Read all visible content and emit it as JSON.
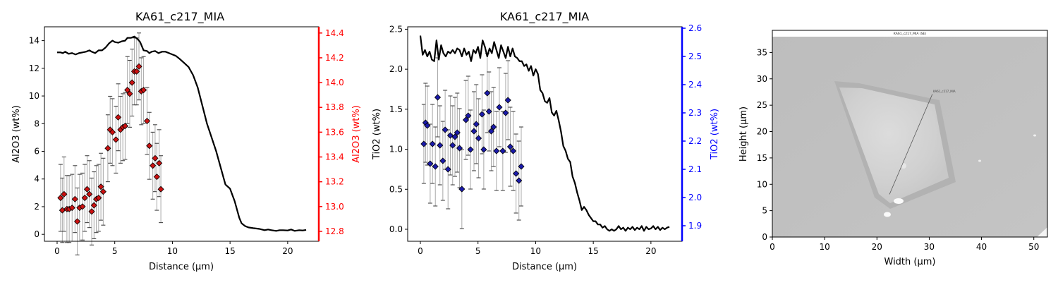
{
  "colors": {
    "left_axis": "#000000",
    "al2o3": "#ff0000",
    "tio2": "#0000ff",
    "line": "#000000",
    "marker_al2o3": "#cc1111",
    "marker_tio2": "#1a1aaa",
    "errorbar": "#a8a8a8"
  },
  "chart_data": [
    {
      "type": "line",
      "title": "KA61_c217_MIA",
      "xlabel": "Distance (µm)",
      "ylabel": "Al2O3 (wt%)",
      "y2label": "Al2O3 (wt%)",
      "xlim": [
        -1.1,
        22.7
      ],
      "ylim": [
        -0.5,
        15.0
      ],
      "y2lim": [
        12.72,
        14.45
      ],
      "xticks": [
        0,
        5,
        10,
        15,
        20
      ],
      "yticks": [
        0,
        2,
        4,
        6,
        8,
        10,
        12,
        14
      ],
      "y2ticks": [
        12.8,
        13.0,
        13.2,
        13.4,
        13.6,
        13.8,
        14.0,
        14.2,
        14.4
      ],
      "series": [
        {
          "type": "line",
          "axis": "left",
          "x": [
            0,
            0.3,
            0.5,
            0.7,
            1.0,
            1.3,
            1.6,
            1.9,
            2.2,
            2.5,
            2.8,
            3.0,
            3.3,
            3.6,
            3.9,
            4.2,
            4.5,
            4.8,
            5.0,
            5.3,
            5.6,
            5.9,
            6.1,
            6.4,
            6.7,
            7.0,
            7.2,
            7.5,
            7.8,
            8.0,
            8.2,
            8.5,
            8.8,
            9.1,
            9.4,
            9.7,
            10.0,
            10.3,
            10.6,
            11.0,
            11.4,
            11.8,
            12.2,
            12.6,
            13.0,
            13.4,
            13.8,
            14.2,
            14.6,
            15.0,
            15.4,
            15.8,
            16.0,
            16.3,
            16.6,
            17.0,
            17.5,
            18.0,
            18.3,
            18.6,
            19.0,
            19.3,
            19.6,
            20.0,
            20.3,
            20.6,
            21.0,
            21.3,
            21.6
          ],
          "y": [
            13.15,
            13.15,
            13.1,
            13.2,
            13.05,
            13.1,
            13.0,
            13.1,
            13.15,
            13.2,
            13.3,
            13.2,
            13.1,
            13.3,
            13.3,
            13.5,
            13.8,
            14.0,
            13.9,
            13.85,
            13.95,
            14.0,
            14.2,
            14.2,
            14.3,
            14.1,
            13.9,
            13.3,
            13.25,
            13.1,
            13.2,
            13.25,
            13.1,
            13.2,
            13.2,
            13.1,
            13.0,
            12.9,
            12.7,
            12.4,
            12.1,
            11.5,
            10.6,
            9.3,
            8.0,
            7.0,
            6.0,
            4.8,
            3.6,
            3.3,
            2.4,
            1.2,
            0.8,
            0.6,
            0.5,
            0.45,
            0.4,
            0.3,
            0.35,
            0.3,
            0.25,
            0.3,
            0.3,
            0.28,
            0.35,
            0.25,
            0.3,
            0.28,
            0.32
          ]
        },
        {
          "type": "errorbar",
          "axis": "right",
          "marker": "diamond",
          "points": [
            {
              "x": 0.3,
              "y": 13.07,
              "err": 0.27
            },
            {
              "x": 0.45,
              "y": 12.97,
              "err": 0.26
            },
            {
              "x": 0.6,
              "y": 13.1,
              "err": 0.3
            },
            {
              "x": 0.85,
              "y": 12.98,
              "err": 0.27
            },
            {
              "x": 1.05,
              "y": 12.98,
              "err": 0.27
            },
            {
              "x": 1.3,
              "y": 12.99,
              "err": 0.27
            },
            {
              "x": 1.55,
              "y": 13.06,
              "err": 0.27
            },
            {
              "x": 1.75,
              "y": 12.88,
              "err": 0.27
            },
            {
              "x": 1.95,
              "y": 12.99,
              "err": 0.27
            },
            {
              "x": 2.2,
              "y": 13.0,
              "err": 0.27
            },
            {
              "x": 2.4,
              "y": 13.07,
              "err": 0.27
            },
            {
              "x": 2.6,
              "y": 13.14,
              "err": 0.27
            },
            {
              "x": 2.8,
              "y": 13.1,
              "err": 0.27
            },
            {
              "x": 3.0,
              "y": 12.96,
              "err": 0.27
            },
            {
              "x": 3.2,
              "y": 13.01,
              "err": 0.27
            },
            {
              "x": 3.4,
              "y": 13.06,
              "err": 0.27
            },
            {
              "x": 3.6,
              "y": 13.07,
              "err": 0.27
            },
            {
              "x": 3.8,
              "y": 13.16,
              "err": 0.27
            },
            {
              "x": 4.0,
              "y": 13.12,
              "err": 0.27
            },
            {
              "x": 4.4,
              "y": 13.47,
              "err": 0.27
            },
            {
              "x": 4.6,
              "y": 13.62,
              "err": 0.27
            },
            {
              "x": 4.8,
              "y": 13.6,
              "err": 0.27
            },
            {
              "x": 5.1,
              "y": 13.54,
              "err": 0.27
            },
            {
              "x": 5.3,
              "y": 13.72,
              "err": 0.27
            },
            {
              "x": 5.5,
              "y": 13.62,
              "err": 0.27
            },
            {
              "x": 5.7,
              "y": 13.64,
              "err": 0.27
            },
            {
              "x": 5.9,
              "y": 13.65,
              "err": 0.27
            },
            {
              "x": 6.1,
              "y": 13.94,
              "err": 0.27
            },
            {
              "x": 6.3,
              "y": 13.91,
              "err": 0.27
            },
            {
              "x": 6.5,
              "y": 14.0,
              "err": 0.27
            },
            {
              "x": 6.7,
              "y": 14.09,
              "err": 0.27
            },
            {
              "x": 6.9,
              "y": 14.09,
              "err": 0.27
            },
            {
              "x": 7.1,
              "y": 14.13,
              "err": 0.27
            },
            {
              "x": 7.3,
              "y": 13.93,
              "err": 0.27
            },
            {
              "x": 7.5,
              "y": 13.94,
              "err": 0.27
            },
            {
              "x": 7.8,
              "y": 13.69,
              "err": 0.27
            },
            {
              "x": 8.0,
              "y": 13.49,
              "err": 0.27
            },
            {
              "x": 8.3,
              "y": 13.33,
              "err": 0.27
            },
            {
              "x": 8.5,
              "y": 13.39,
              "err": 0.27
            },
            {
              "x": 8.65,
              "y": 13.24,
              "err": 0.27
            },
            {
              "x": 8.85,
              "y": 13.35,
              "err": 0.27
            },
            {
              "x": 9.0,
              "y": 13.14,
              "err": 0.27
            }
          ]
        }
      ]
    },
    {
      "type": "line",
      "title": "KA61_c217_MIA",
      "xlabel": "Distance (µm)",
      "ylabel": "TiO2 (wt%)",
      "y2label": "TiO2 (wt%)",
      "xlim": [
        -1.1,
        22.7
      ],
      "ylim": [
        -0.15,
        2.53
      ],
      "y2lim": [
        1.845,
        2.605
      ],
      "xticks": [
        0,
        5,
        10,
        15,
        20
      ],
      "yticks": [
        0.0,
        0.5,
        1.0,
        1.5,
        2.0,
        2.5
      ],
      "y2ticks": [
        1.9,
        2.0,
        2.1,
        2.2,
        2.3,
        2.4,
        2.5,
        2.6
      ],
      "series": [
        {
          "type": "line",
          "axis": "left",
          "x": [
            0,
            0.2,
            0.4,
            0.6,
            0.8,
            1.0,
            1.2,
            1.4,
            1.6,
            1.8,
            2.0,
            2.2,
            2.4,
            2.6,
            2.8,
            3.0,
            3.2,
            3.4,
            3.6,
            3.8,
            4.0,
            4.2,
            4.4,
            4.6,
            4.8,
            5.0,
            5.2,
            5.4,
            5.6,
            5.8,
            6.0,
            6.2,
            6.4,
            6.6,
            6.8,
            7.0,
            7.2,
            7.4,
            7.6,
            7.8,
            8.0,
            8.2,
            8.4,
            8.6,
            8.8,
            9.0,
            9.2,
            9.4,
            9.6,
            9.8,
            10.0,
            10.2,
            10.4,
            10.6,
            10.8,
            11.0,
            11.2,
            11.4,
            11.6,
            11.8,
            12.0,
            12.2,
            12.4,
            12.6,
            12.8,
            13.0,
            13.2,
            13.4,
            13.6,
            13.8,
            14.0,
            14.2,
            14.4,
            14.6,
            14.8,
            15.0,
            15.2,
            15.4,
            15.6,
            15.8,
            16.0,
            16.2,
            16.4,
            16.6,
            16.8,
            17.0,
            17.2,
            17.4,
            17.6,
            17.8,
            18.0,
            18.2,
            18.4,
            18.6,
            18.8,
            19.0,
            19.2,
            19.4,
            19.6,
            19.8,
            20.0,
            20.2,
            20.4,
            20.6,
            20.8,
            21.0,
            21.2,
            21.4,
            21.6
          ],
          "y": [
            2.42,
            2.18,
            2.24,
            2.16,
            2.22,
            2.12,
            2.1,
            2.36,
            2.12,
            2.3,
            2.2,
            2.16,
            2.22,
            2.2,
            2.24,
            2.2,
            2.26,
            2.24,
            2.16,
            2.26,
            2.18,
            2.22,
            2.1,
            2.24,
            2.2,
            2.28,
            2.14,
            2.36,
            2.28,
            2.16,
            2.26,
            2.2,
            2.34,
            2.24,
            2.14,
            2.3,
            2.22,
            2.14,
            2.28,
            2.16,
            2.26,
            2.16,
            2.14,
            2.1,
            2.1,
            2.04,
            2.06,
            1.98,
            2.04,
            1.92,
            2.0,
            1.94,
            1.74,
            1.7,
            1.6,
            1.58,
            1.64,
            1.46,
            1.42,
            1.48,
            1.36,
            1.22,
            1.04,
            0.98,
            0.88,
            0.84,
            0.66,
            0.58,
            0.46,
            0.36,
            0.24,
            0.28,
            0.24,
            0.18,
            0.14,
            0.1,
            0.1,
            0.06,
            0.06,
            0.02,
            0.04,
            0.0,
            -0.02,
            0.0,
            -0.02,
            0.0,
            0.04,
            0.0,
            0.02,
            -0.02,
            0.02,
            0.0,
            0.03,
            -0.01,
            0.02,
            0.0,
            0.04,
            -0.02,
            0.03,
            0.0,
            0.01,
            0.04,
            0.0,
            0.03,
            -0.01,
            0.02,
            0.0,
            0.02,
            0.03
          ]
        },
        {
          "type": "errorbar",
          "axis": "right",
          "marker": "diamond",
          "points": [
            {
              "x": 0.3,
              "y": 2.19,
              "err": 0.14
            },
            {
              "x": 0.45,
              "y": 2.265,
              "err": 0.14
            },
            {
              "x": 0.6,
              "y": 2.255,
              "err": 0.14
            },
            {
              "x": 0.85,
              "y": 2.12,
              "err": 0.14
            },
            {
              "x": 1.05,
              "y": 2.19,
              "err": 0.14
            },
            {
              "x": 1.3,
              "y": 2.11,
              "err": 0.14
            },
            {
              "x": 1.5,
              "y": 2.355,
              "err": 0.14
            },
            {
              "x": 1.7,
              "y": 2.185,
              "err": 0.14
            },
            {
              "x": 1.95,
              "y": 2.13,
              "err": 0.14
            },
            {
              "x": 2.15,
              "y": 2.24,
              "err": 0.14
            },
            {
              "x": 2.4,
              "y": 2.1,
              "err": 0.14
            },
            {
              "x": 2.6,
              "y": 2.22,
              "err": 0.14
            },
            {
              "x": 2.8,
              "y": 2.185,
              "err": 0.14
            },
            {
              "x": 3.0,
              "y": 2.215,
              "err": 0.14
            },
            {
              "x": 3.2,
              "y": 2.23,
              "err": 0.14
            },
            {
              "x": 3.4,
              "y": 2.175,
              "err": 0.14
            },
            {
              "x": 3.6,
              "y": 2.03,
              "err": 0.14
            },
            {
              "x": 3.95,
              "y": 2.275,
              "err": 0.14
            },
            {
              "x": 4.15,
              "y": 2.29,
              "err": 0.14
            },
            {
              "x": 4.35,
              "y": 2.17,
              "err": 0.14
            },
            {
              "x": 4.65,
              "y": 2.235,
              "err": 0.14
            },
            {
              "x": 4.85,
              "y": 2.26,
              "err": 0.14
            },
            {
              "x": 5.05,
              "y": 2.21,
              "err": 0.14
            },
            {
              "x": 5.35,
              "y": 2.295,
              "err": 0.14
            },
            {
              "x": 5.5,
              "y": 2.17,
              "err": 0.14
            },
            {
              "x": 5.8,
              "y": 2.37,
              "err": 0.14
            },
            {
              "x": 5.95,
              "y": 2.305,
              "err": 0.14
            },
            {
              "x": 6.15,
              "y": 2.235,
              "err": 0.14
            },
            {
              "x": 6.35,
              "y": 2.25,
              "err": 0.14
            },
            {
              "x": 6.6,
              "y": 2.165,
              "err": 0.14
            },
            {
              "x": 6.85,
              "y": 2.32,
              "err": 0.14
            },
            {
              "x": 7.15,
              "y": 2.165,
              "err": 0.14
            },
            {
              "x": 7.4,
              "y": 2.3,
              "err": 0.14
            },
            {
              "x": 7.6,
              "y": 2.345,
              "err": 0.14
            },
            {
              "x": 7.8,
              "y": 2.18,
              "err": 0.14
            },
            {
              "x": 8.05,
              "y": 2.165,
              "err": 0.14
            },
            {
              "x": 8.3,
              "y": 2.085,
              "err": 0.14
            },
            {
              "x": 8.55,
              "y": 2.06,
              "err": 0.14
            },
            {
              "x": 8.75,
              "y": 2.11,
              "err": 0.14
            }
          ]
        }
      ]
    },
    {
      "type": "heatmap",
      "title": "",
      "subtitle": "KA61_c217_MIA (SE)",
      "annotation": "KA61_c217_MIA",
      "xlabel": "Width (µm)",
      "ylabel": "Height (µm)",
      "xlim": [
        0,
        52.6
      ],
      "ylim": [
        0,
        39.2
      ],
      "xticks": [
        0,
        10,
        20,
        30,
        40,
        50
      ],
      "yticks": [
        0,
        5,
        10,
        15,
        20,
        25,
        30,
        35
      ],
      "transect": {
        "x": [
          22.4,
          30.6
        ],
        "y": [
          8.1,
          27.1
        ]
      }
    }
  ]
}
